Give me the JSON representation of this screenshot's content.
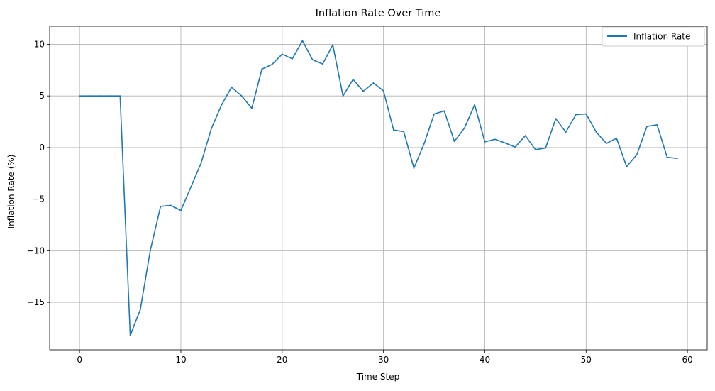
{
  "chart_data": {
    "type": "line",
    "title": "Inflation Rate Over Time",
    "xlabel": "Time Step",
    "ylabel": "Inflation Rate (%)",
    "xlim": [
      -2.95,
      61.95
    ],
    "ylim": [
      -19.6,
      11.75
    ],
    "xticks": [
      0,
      10,
      20,
      30,
      40,
      50,
      60
    ],
    "xtick_labels": [
      "0",
      "10",
      "20",
      "30",
      "40",
      "50",
      "60"
    ],
    "yticks": [
      -15,
      -10,
      -5,
      0,
      5,
      10
    ],
    "ytick_labels": [
      "−15",
      "−10",
      "−5",
      "0",
      "5",
      "10"
    ],
    "grid": true,
    "legend_position": "upper right",
    "series": [
      {
        "name": "Inflation Rate",
        "color": "#1f77b4",
        "x": [
          0,
          1,
          2,
          3,
          4,
          5,
          6,
          7,
          8,
          9,
          10,
          11,
          12,
          13,
          14,
          15,
          16,
          17,
          18,
          19,
          20,
          21,
          22,
          23,
          24,
          25,
          26,
          27,
          28,
          29,
          30,
          31,
          32,
          33,
          34,
          35,
          36,
          37,
          38,
          39,
          40,
          41,
          42,
          43,
          44,
          45,
          46,
          47,
          48,
          49,
          50,
          51,
          52,
          53,
          54,
          55,
          56,
          57,
          58,
          59
        ],
        "y": [
          5.0,
          5.0,
          5.0,
          5.0,
          5.0,
          -18.2,
          -15.7,
          -9.9,
          -5.7,
          -5.6,
          -6.1,
          -3.8,
          -1.5,
          1.8,
          4.1,
          5.85,
          5.0,
          3.8,
          7.6,
          8.05,
          9.05,
          8.6,
          10.35,
          8.5,
          8.1,
          9.95,
          5.0,
          6.6,
          5.45,
          6.25,
          5.5,
          1.7,
          1.55,
          -2.0,
          0.35,
          3.25,
          3.55,
          0.6,
          1.9,
          4.15,
          0.55,
          0.8,
          0.45,
          0.05,
          1.15,
          -0.2,
          -0.05,
          2.8,
          1.5,
          3.2,
          3.25,
          1.5,
          0.4,
          0.9,
          -1.85,
          -0.7,
          2.05,
          2.2,
          -0.95,
          -1.05
        ]
      }
    ]
  }
}
